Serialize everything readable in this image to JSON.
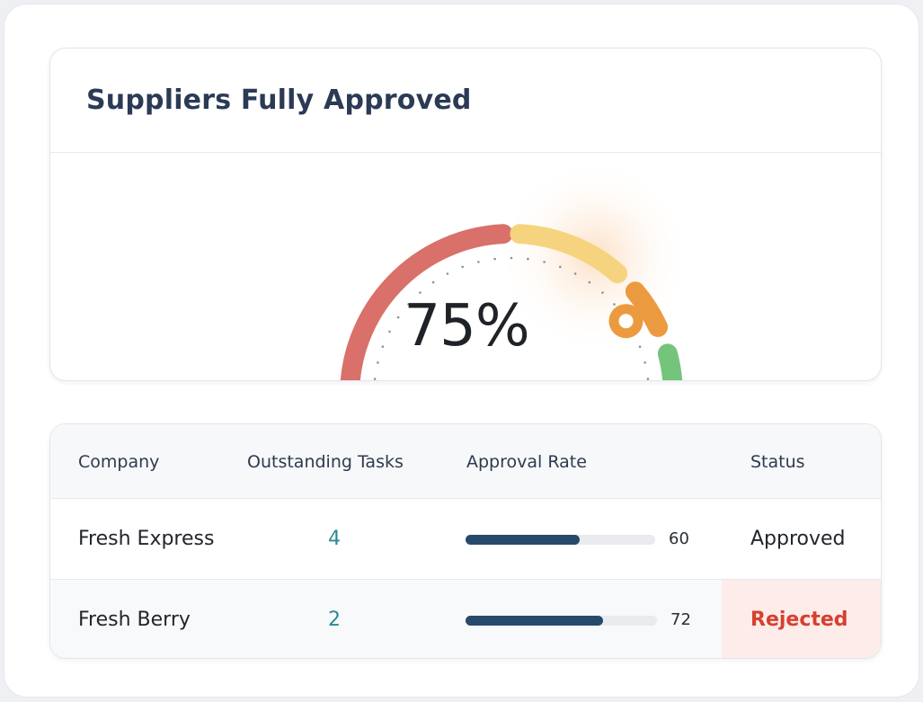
{
  "gauge": {
    "title": "Suppliers Fully Approved",
    "value": 75,
    "value_label": "75%",
    "segments": [
      {
        "name": "red",
        "color": "#d9706a"
      },
      {
        "name": "yellow",
        "color": "#f6d37e"
      },
      {
        "name": "orange",
        "color": "#ec9a3f"
      },
      {
        "name": "green",
        "color": "#74c47c"
      }
    ]
  },
  "table": {
    "headers": {
      "company": "Company",
      "tasks": "Outstanding Tasks",
      "rate": "Approval Rate",
      "status": "Status"
    },
    "rows": [
      {
        "company": "Fresh Express",
        "tasks": "4",
        "rate": 60,
        "rate_label": "60",
        "status": "Approved"
      },
      {
        "company": "Fresh Berry",
        "tasks": "2",
        "rate": 72,
        "rate_label": "72",
        "status": "Rejected"
      }
    ],
    "colors": {
      "bar": "#284a6a",
      "rejected": "#d6402f",
      "tasks": "#2a8a93"
    }
  }
}
